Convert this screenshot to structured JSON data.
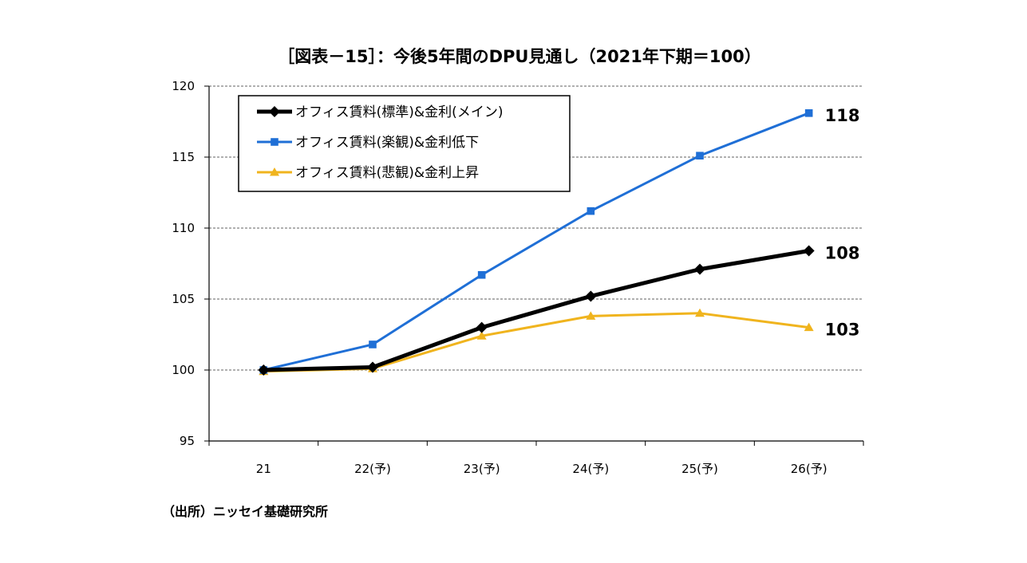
{
  "chart_data": {
    "type": "line",
    "title": "［図表－15］：今後5年間のDPU見通し（2021年下期＝100）",
    "categories": [
      "21",
      "22(予)",
      "23(予)",
      "24(予)",
      "25(予)",
      "26(予)"
    ],
    "yticks": [
      "120",
      "115",
      "110",
      "105",
      "100",
      "95"
    ],
    "ylim": [
      95,
      120
    ],
    "grid": "horizontal-dashed",
    "legend_position": "top-left",
    "series": [
      {
        "name": "オフィス賃料(標準)&金利(メイン)",
        "color": "#000000",
        "marker": "diamond",
        "values": [
          100.0,
          100.2,
          103.0,
          105.2,
          107.1,
          108.4
        ],
        "end_label": "108"
      },
      {
        "name": "オフィス賃料(楽観)&金利低下",
        "color": "#1f6fd6",
        "marker": "square",
        "values": [
          100.0,
          101.8,
          106.7,
          111.2,
          115.1,
          118.1
        ],
        "end_label": "118"
      },
      {
        "name": "オフィス賃料(悲観)&金利上昇",
        "color": "#f0b41e",
        "marker": "triangle",
        "values": [
          99.9,
          100.1,
          102.4,
          103.8,
          104.0,
          103.0
        ],
        "end_label": "103"
      }
    ],
    "source": "（出所）ニッセイ基礎研究所"
  }
}
